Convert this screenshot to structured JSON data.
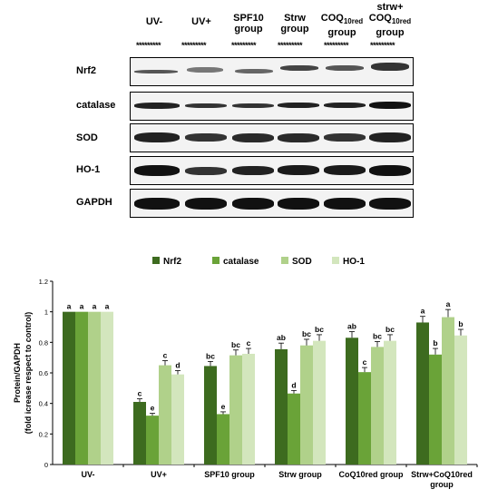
{
  "blot": {
    "headers": [
      {
        "line1": "UV-",
        "line2": "",
        "sub": "",
        "line3": ""
      },
      {
        "line1": "UV+",
        "line2": "",
        "sub": "",
        "line3": ""
      },
      {
        "line1": "SPF10",
        "line2": "group",
        "sub": "",
        "line3": ""
      },
      {
        "line1": "Strw",
        "line2": "group",
        "sub": "",
        "line3": ""
      },
      {
        "line1": "COQ",
        "sub": "10red",
        "line2": "group",
        "line3": ""
      },
      {
        "line1": "strw+",
        "line2": "COQ",
        "sub": "10red",
        "line3": "group"
      }
    ],
    "dots": "*********",
    "rows": [
      "Nrf2",
      "catalase",
      "SOD",
      "HO-1",
      "GAPDH"
    ]
  },
  "chart_data": {
    "type": "bar",
    "categories": [
      "UV-",
      "UV+",
      "SPF10 group",
      "Strw group",
      "CoQ10red group",
      "Strw+CoQ10red group"
    ],
    "series": [
      {
        "name": "Nrf2",
        "color": "#3d6b1f",
        "values": [
          1.0,
          0.41,
          0.645,
          0.755,
          0.83,
          0.93
        ],
        "errors": [
          0,
          0.02,
          0.03,
          0.04,
          0.04,
          0.04
        ],
        "labels": [
          "a",
          "c",
          "bc",
          "ab",
          "ab",
          "a"
        ]
      },
      {
        "name": "catalase",
        "color": "#6aa338",
        "values": [
          1.0,
          0.32,
          0.33,
          0.465,
          0.605,
          0.72
        ],
        "errors": [
          0,
          0.015,
          0.015,
          0.02,
          0.03,
          0.04
        ],
        "labels": [
          "a",
          "e",
          "e",
          "d",
          "c",
          "b"
        ]
      },
      {
        "name": "SOD",
        "color": "#b0d18a",
        "values": [
          1.0,
          0.65,
          0.715,
          0.78,
          0.77,
          0.965
        ],
        "errors": [
          0,
          0.03,
          0.035,
          0.04,
          0.035,
          0.05
        ],
        "labels": [
          "a",
          "c",
          "bc",
          "bc",
          "bc",
          "a"
        ]
      },
      {
        "name": "HO-1",
        "color": "#d3e6bd",
        "values": [
          1.0,
          0.59,
          0.725,
          0.81,
          0.81,
          0.845
        ],
        "errors": [
          0,
          0.025,
          0.035,
          0.04,
          0.04,
          0.04
        ],
        "labels": [
          "a",
          "d",
          "c",
          "bc",
          "bc",
          "b"
        ]
      }
    ],
    "ylabel_line1": "Protein/GAPDH",
    "ylabel_line2": "(fold icrease respect to control)",
    "ylim": [
      0,
      1.2
    ],
    "yticks": [
      "0",
      "0.2",
      "0.4",
      "0.6",
      "0.8",
      "1",
      "1.2"
    ],
    "legend_position": "top",
    "grid": false
  }
}
